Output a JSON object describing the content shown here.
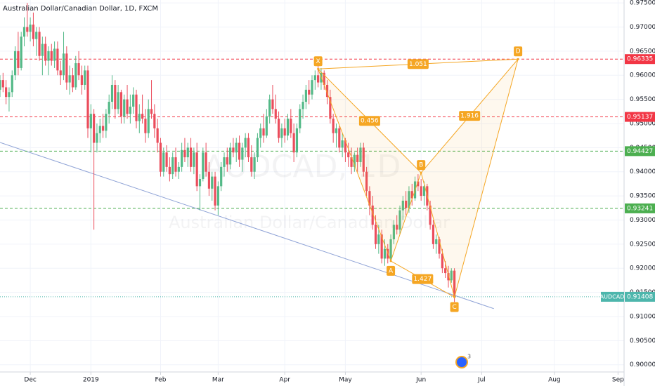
{
  "title": "Australian Dollar/Canadian Dollar, 1D, FXCM",
  "watermark": {
    "symbol": "AUDCAD, 1D",
    "description": "Australian Dollar/Canadian Dollar"
  },
  "badge": "3",
  "chart_data": {
    "type": "candlestick",
    "grid": true,
    "xlim": [
      0,
      206
    ],
    "xticks": [
      {
        "value": 10,
        "label": "Dec"
      },
      {
        "value": 30,
        "label": "2019"
      },
      {
        "value": 53,
        "label": "Feb"
      },
      {
        "value": 72,
        "label": "Mar"
      },
      {
        "value": 94,
        "label": "Apr"
      },
      {
        "value": 114,
        "label": "May"
      },
      {
        "value": 139,
        "label": "Jun"
      },
      {
        "value": 159,
        "label": "Jul"
      },
      {
        "value": 183,
        "label": "Aug"
      },
      {
        "value": 204,
        "label": "Sep"
      }
    ],
    "ylim": [
      0.8985,
      0.9756
    ],
    "yticks": [
      {
        "value": 0.9,
        "label": "0.90000"
      },
      {
        "value": 0.905,
        "label": "0.90500"
      },
      {
        "value": 0.91,
        "label": "0.91000"
      },
      {
        "value": 0.915,
        "label": "0.91500"
      },
      {
        "value": 0.92,
        "label": "0.92000"
      },
      {
        "value": 0.925,
        "label": "0.92500"
      },
      {
        "value": 0.93,
        "label": "0.93000"
      },
      {
        "value": 0.935,
        "label": "0.93500"
      },
      {
        "value": 0.94,
        "label": "0.94000"
      },
      {
        "value": 0.945,
        "label": "0.94500"
      },
      {
        "value": 0.95,
        "label": "0.95000"
      },
      {
        "value": 0.955,
        "label": "0.95500"
      },
      {
        "value": 0.96,
        "label": "0.96000"
      },
      {
        "value": 0.965,
        "label": "0.96500"
      },
      {
        "value": 0.97,
        "label": "0.97000"
      },
      {
        "value": 0.975,
        "label": "0.97500"
      }
    ],
    "series": [
      {
        "name": "AUDCAD",
        "up_color": "#53b987",
        "down_color": "#eb4d5c",
        "ohlc": [
          [
            0.957,
            0.96,
            0.9555,
            0.959
          ],
          [
            0.959,
            0.9605,
            0.9565,
            0.9575
          ],
          [
            0.9575,
            0.959,
            0.954,
            0.9555
          ],
          [
            0.9555,
            0.9575,
            0.9525,
            0.9565
          ],
          [
            0.9565,
            0.961,
            0.9555,
            0.96
          ],
          [
            0.96,
            0.966,
            0.959,
            0.965
          ],
          [
            0.965,
            0.969,
            0.96,
            0.9615
          ],
          [
            0.9615,
            0.969,
            0.961,
            0.968
          ],
          [
            0.968,
            0.972,
            0.966,
            0.97
          ],
          [
            0.97,
            0.975,
            0.968,
            0.969
          ],
          [
            0.969,
            0.972,
            0.967,
            0.9705
          ],
          [
            0.9705,
            0.973,
            0.966,
            0.9675
          ],
          [
            0.9675,
            0.97,
            0.964,
            0.969
          ],
          [
            0.969,
            0.97,
            0.963,
            0.964
          ],
          [
            0.964,
            0.968,
            0.96,
            0.9665
          ],
          [
            0.9665,
            0.968,
            0.962,
            0.963
          ],
          [
            0.963,
            0.966,
            0.96,
            0.965
          ],
          [
            0.965,
            0.9665,
            0.962,
            0.963
          ],
          [
            0.963,
            0.967,
            0.9615,
            0.9655
          ],
          [
            0.9655,
            0.967,
            0.96,
            0.961
          ],
          [
            0.961,
            0.963,
            0.958,
            0.96
          ],
          [
            0.96,
            0.969,
            0.959,
            0.9645
          ],
          [
            0.9645,
            0.966,
            0.957,
            0.9585
          ],
          [
            0.9585,
            0.962,
            0.956,
            0.96
          ],
          [
            0.96,
            0.9615,
            0.9565,
            0.9575
          ],
          [
            0.9575,
            0.964,
            0.957,
            0.9625
          ],
          [
            0.9625,
            0.965,
            0.959,
            0.96
          ],
          [
            0.96,
            0.962,
            0.956,
            0.958
          ],
          [
            0.958,
            0.962,
            0.957,
            0.961
          ],
          [
            0.961,
            0.962,
            0.947,
            0.949
          ],
          [
            0.949,
            0.954,
            0.944,
            0.952
          ],
          [
            0.952,
            0.953,
            0.928,
            0.946
          ],
          [
            0.946,
            0.95,
            0.944,
            0.948
          ],
          [
            0.948,
            0.951,
            0.946,
            0.9495
          ],
          [
            0.9495,
            0.952,
            0.947,
            0.9485
          ],
          [
            0.9485,
            0.953,
            0.947,
            0.952
          ],
          [
            0.952,
            0.956,
            0.95,
            0.9545
          ],
          [
            0.9545,
            0.96,
            0.953,
            0.958
          ],
          [
            0.958,
            0.959,
            0.951,
            0.953
          ],
          [
            0.953,
            0.958,
            0.952,
            0.9565
          ],
          [
            0.9565,
            0.957,
            0.95,
            0.9515
          ],
          [
            0.9515,
            0.956,
            0.95,
            0.955
          ],
          [
            0.955,
            0.958,
            0.951,
            0.952
          ],
          [
            0.952,
            0.956,
            0.95,
            0.9535
          ],
          [
            0.9535,
            0.9575,
            0.952,
            0.956
          ],
          [
            0.956,
            0.957,
            0.949,
            0.9505
          ],
          [
            0.9505,
            0.954,
            0.948,
            0.952
          ],
          [
            0.952,
            0.956,
            0.95,
            0.951
          ],
          [
            0.951,
            0.953,
            0.946,
            0.948
          ],
          [
            0.948,
            0.955,
            0.947,
            0.953
          ],
          [
            0.953,
            0.959,
            0.951,
            0.952
          ],
          [
            0.952,
            0.954,
            0.947,
            0.949
          ],
          [
            0.949,
            0.951,
            0.944,
            0.946
          ],
          [
            0.946,
            0.947,
            0.939,
            0.94
          ],
          [
            0.94,
            0.945,
            0.939,
            0.944
          ],
          [
            0.944,
            0.9455,
            0.94,
            0.941
          ],
          [
            0.941,
            0.943,
            0.938,
            0.9395
          ],
          [
            0.9395,
            0.944,
            0.9385,
            0.943
          ],
          [
            0.943,
            0.945,
            0.939,
            0.94
          ],
          [
            0.94,
            0.942,
            0.9385,
            0.941
          ],
          [
            0.941,
            0.946,
            0.94,
            0.9445
          ],
          [
            0.9445,
            0.947,
            0.942,
            0.943
          ],
          [
            0.943,
            0.946,
            0.941,
            0.945
          ],
          [
            0.945,
            0.947,
            0.94,
            0.941
          ],
          [
            0.941,
            0.945,
            0.9395,
            0.944
          ],
          [
            0.944,
            0.946,
            0.936,
            0.937
          ],
          [
            0.937,
            0.9395,
            0.932,
            0.9385
          ],
          [
            0.9385,
            0.945,
            0.938,
            0.944
          ],
          [
            0.944,
            0.946,
            0.939,
            0.94
          ],
          [
            0.94,
            0.942,
            0.935,
            0.9365
          ],
          [
            0.9365,
            0.94,
            0.934,
            0.939
          ],
          [
            0.939,
            0.94,
            0.932,
            0.933
          ],
          [
            0.933,
            0.938,
            0.931,
            0.937
          ],
          [
            0.937,
            0.942,
            0.936,
            0.941
          ],
          [
            0.941,
            0.944,
            0.939,
            0.943
          ],
          [
            0.943,
            0.945,
            0.94,
            0.9415
          ],
          [
            0.9415,
            0.946,
            0.9405,
            0.945
          ],
          [
            0.945,
            0.947,
            0.943,
            0.944
          ],
          [
            0.944,
            0.947,
            0.942,
            0.946
          ],
          [
            0.946,
            0.9475,
            0.941,
            0.9425
          ],
          [
            0.9425,
            0.946,
            0.94,
            0.945
          ],
          [
            0.945,
            0.948,
            0.943,
            0.947
          ],
          [
            0.947,
            0.948,
            0.942,
            0.943
          ],
          [
            0.943,
            0.9455,
            0.939,
            0.94
          ],
          [
            0.94,
            0.944,
            0.9385,
            0.943
          ],
          [
            0.943,
            0.948,
            0.942,
            0.947
          ],
          [
            0.947,
            0.95,
            0.945,
            0.949
          ],
          [
            0.949,
            0.952,
            0.946,
            0.9475
          ],
          [
            0.9475,
            0.953,
            0.947,
            0.9515
          ],
          [
            0.9515,
            0.956,
            0.95,
            0.955
          ],
          [
            0.955,
            0.958,
            0.952,
            0.953
          ],
          [
            0.953,
            0.956,
            0.95,
            0.951
          ],
          [
            0.951,
            0.9525,
            0.946,
            0.947
          ],
          [
            0.947,
            0.95,
            0.945,
            0.949
          ],
          [
            0.949,
            0.951,
            0.946,
            0.9475
          ],
          [
            0.9475,
            0.952,
            0.9465,
            0.951
          ],
          [
            0.951,
            0.953,
            0.947,
            0.948
          ],
          [
            0.948,
            0.95,
            0.942,
            0.944
          ],
          [
            0.944,
            0.95,
            0.943,
            0.949
          ],
          [
            0.949,
            0.954,
            0.948,
            0.953
          ],
          [
            0.953,
            0.956,
            0.951,
            0.9545
          ],
          [
            0.9545,
            0.958,
            0.953,
            0.957
          ],
          [
            0.957,
            0.959,
            0.954,
            0.956
          ],
          [
            0.956,
            0.96,
            0.955,
            0.959
          ],
          [
            0.959,
            0.961,
            0.957,
            0.96
          ],
          [
            0.96,
            0.9625,
            0.9575,
            0.9585
          ],
          [
            0.9585,
            0.9615,
            0.957,
            0.9605
          ],
          [
            0.9605,
            0.961,
            0.957,
            0.958
          ],
          [
            0.958,
            0.959,
            0.954,
            0.9555
          ],
          [
            0.9555,
            0.957,
            0.95,
            0.951
          ],
          [
            0.951,
            0.952,
            0.946,
            0.948
          ],
          [
            0.948,
            0.95,
            0.945,
            0.949
          ],
          [
            0.949,
            0.9495,
            0.944,
            0.945
          ],
          [
            0.945,
            0.948,
            0.943,
            0.9465
          ],
          [
            0.9465,
            0.947,
            0.942,
            0.944
          ],
          [
            0.944,
            0.946,
            0.941,
            0.943
          ],
          [
            0.943,
            0.945,
            0.9395,
            0.941
          ],
          [
            0.941,
            0.944,
            0.94,
            0.9435
          ],
          [
            0.9435,
            0.945,
            0.94,
            0.942
          ],
          [
            0.942,
            0.946,
            0.941,
            0.945
          ],
          [
            0.945,
            0.946,
            0.939,
            0.94
          ],
          [
            0.94,
            0.941,
            0.935,
            0.936
          ],
          [
            0.936,
            0.937,
            0.931,
            0.933
          ],
          [
            0.933,
            0.935,
            0.928,
            0.929
          ],
          [
            0.929,
            0.931,
            0.924,
            0.925
          ],
          [
            0.925,
            0.929,
            0.923,
            0.927
          ],
          [
            0.927,
            0.928,
            0.921,
            0.922
          ],
          [
            0.922,
            0.926,
            0.9205,
            0.924
          ],
          [
            0.924,
            0.925,
            0.921,
            0.922
          ],
          [
            0.922,
            0.927,
            0.9215,
            0.926
          ],
          [
            0.926,
            0.93,
            0.925,
            0.929
          ],
          [
            0.929,
            0.931,
            0.927,
            0.928
          ],
          [
            0.928,
            0.933,
            0.927,
            0.932
          ],
          [
            0.932,
            0.935,
            0.93,
            0.934
          ],
          [
            0.934,
            0.936,
            0.931,
            0.9325
          ],
          [
            0.9325,
            0.937,
            0.9315,
            0.936
          ],
          [
            0.936,
            0.9375,
            0.933,
            0.9345
          ],
          [
            0.9345,
            0.939,
            0.934,
            0.938
          ],
          [
            0.938,
            0.9395,
            0.936,
            0.937
          ],
          [
            0.937,
            0.9385,
            0.934,
            0.935
          ],
          [
            0.935,
            0.938,
            0.933,
            0.937
          ],
          [
            0.937,
            0.9375,
            0.932,
            0.933
          ],
          [
            0.933,
            0.934,
            0.928,
            0.929
          ],
          [
            0.929,
            0.93,
            0.924,
            0.925
          ],
          [
            0.925,
            0.927,
            0.923,
            0.926
          ],
          [
            0.926,
            0.9265,
            0.922,
            0.923
          ],
          [
            0.923,
            0.924,
            0.919,
            0.92
          ],
          [
            0.92,
            0.9215,
            0.918,
            0.919
          ],
          [
            0.919,
            0.9205,
            0.916,
            0.9175
          ],
          [
            0.9175,
            0.92,
            0.917,
            0.9195
          ],
          [
            0.9195,
            0.92,
            0.913,
            0.9141
          ]
        ]
      }
    ],
    "last_price": {
      "name": "AUDCAD",
      "value": 0.91408,
      "color": "#4db6ac"
    },
    "levels": [
      {
        "value": 0.96335,
        "color": "#f23645"
      },
      {
        "value": 0.95137,
        "color": "#f23645"
      },
      {
        "value": 0.94427,
        "color": "#4caf50"
      },
      {
        "value": 0.93241,
        "color": "#4caf50"
      }
    ],
    "trendline": {
      "x": [
        0,
        163
      ],
      "y": [
        0.94608,
        0.91163
      ],
      "color": "#8fa3d6"
    },
    "harmonic": {
      "color": "#f5a623",
      "points": [
        {
          "name": "X",
          "x": 105,
          "y": 0.9613
        },
        {
          "name": "A",
          "x": 129,
          "y": 0.9215
        },
        {
          "name": "B",
          "x": 139,
          "y": 0.9398
        },
        {
          "name": "C",
          "x": 150,
          "y": 0.914
        },
        {
          "name": "D",
          "x": 171,
          "y": 0.96335
        }
      ],
      "ratios": [
        {
          "value": 1.051,
          "from": "X",
          "to": "D"
        },
        {
          "value": 0.456,
          "from": "X",
          "to": "B"
        },
        {
          "value": 1.916,
          "from": "B",
          "to": "D"
        },
        {
          "value": 1.427,
          "from": "A",
          "to": "C"
        }
      ]
    }
  }
}
